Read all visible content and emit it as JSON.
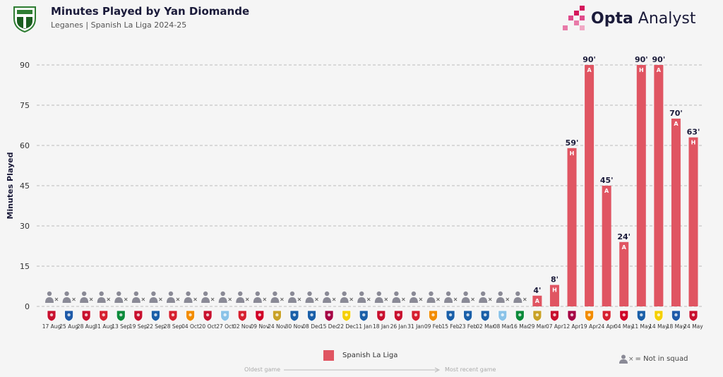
{
  "header": {
    "title": "Minutes Played by Yan Diomande",
    "subtitle": "Leganes | Spanish La Liga 2024-25"
  },
  "brand": {
    "name_bold": "Opta",
    "name_light": " Analyst"
  },
  "legend": {
    "label": "Spanish La Liga",
    "color": "#e05562"
  },
  "timeline": {
    "start": "Oldest game",
    "end": "Most recent game"
  },
  "key": {
    "label": "= Not in squad",
    "cross": "×"
  },
  "colors": {
    "bar": "#e05562",
    "grid": "#bbbbbb",
    "text": "#1b1b3a",
    "icon": "#8a8a96"
  },
  "chart_data": {
    "type": "bar",
    "ylabel": "Minutes Played",
    "ylim": [
      0,
      90
    ],
    "yticks": [
      0,
      15,
      30,
      45,
      60,
      75,
      90
    ],
    "grid": true,
    "legend_position": "bottom-center",
    "categories": [
      "17 Aug",
      "25 Aug",
      "28 Aug",
      "31 Aug",
      "13 Sep",
      "19 Sep",
      "22 Sep",
      "28 Sep",
      "04 Oct",
      "20 Oct",
      "27 Oct",
      "02 Nov",
      "09 Nov",
      "24 Nov",
      "30 Nov",
      "08 Dec",
      "15 Dec",
      "22 Dec",
      "11 Jan",
      "18 Jan",
      "26 Jan",
      "31 Jan",
      "09 Feb",
      "15 Feb",
      "23 Feb",
      "02 Mar",
      "08 Mar",
      "16 Mar",
      "29 Mar",
      "07 Apr",
      "12 Apr",
      "19 Apr",
      "24 Apr",
      "04 May",
      "11 May",
      "14 May",
      "18 May",
      "24 May"
    ],
    "series": [
      {
        "values": [
          null,
          null,
          null,
          null,
          null,
          null,
          null,
          null,
          null,
          null,
          null,
          null,
          null,
          null,
          null,
          null,
          null,
          null,
          null,
          null,
          null,
          null,
          null,
          null,
          null,
          null,
          null,
          null,
          4,
          8,
          59,
          90,
          45,
          24,
          90,
          90,
          70,
          63
        ],
        "value_labels": [
          "",
          "",
          "",
          "",
          "",
          "",
          "",
          "",
          "",
          "",
          "",
          "",
          "",
          "",
          "",
          "",
          "",
          "",
          "",
          "",
          "",
          "",
          "",
          "",
          "",
          "",
          "",
          "",
          "4'",
          "8'",
          "59'",
          "90'",
          "45'",
          "24'",
          "90'",
          "90'",
          "70'",
          "63'"
        ],
        "venue": [
          "",
          "",
          "",
          "",
          "",
          "",
          "",
          "",
          "",
          "",
          "",
          "",
          "",
          "",
          "",
          "",
          "",
          "",
          "",
          "",
          "",
          "",
          "",
          "",
          "",
          "",
          "",
          "",
          "A",
          "H",
          "H",
          "A",
          "A",
          "A",
          "H",
          "A",
          "A",
          "H"
        ]
      }
    ],
    "not_in_squad": [
      true,
      true,
      true,
      true,
      true,
      true,
      true,
      true,
      true,
      true,
      true,
      true,
      true,
      true,
      true,
      true,
      true,
      true,
      true,
      true,
      true,
      true,
      true,
      true,
      true,
      true,
      true,
      true,
      false,
      false,
      false,
      false,
      false,
      false,
      false,
      false,
      false,
      false
    ],
    "opponent_colors": [
      "#c8102e",
      "#1e5aa8",
      "#c8102e",
      "#d6202f",
      "#0b8a3a",
      "#c8102e",
      "#1a5fa8",
      "#d6202f",
      "#f28c00",
      "#c8102e",
      "#8ac3e8",
      "#d6202f",
      "#d00027",
      "#c9a227",
      "#1a5fa8",
      "#1a5fa8",
      "#a50044",
      "#f5d000",
      "#1a5fa8",
      "#c8102e",
      "#c8102e",
      "#d6202f",
      "#f28c00",
      "#1a5fa8",
      "#1a5fa8",
      "#1a5fa8",
      "#8ac3e8",
      "#0b8a3a",
      "#c9a227",
      "#c8102e",
      "#a50044",
      "#f28c00",
      "#d6202f",
      "#d00027",
      "#1a5fa8",
      "#f5d000",
      "#1e5aa8",
      "#c8102e"
    ]
  }
}
